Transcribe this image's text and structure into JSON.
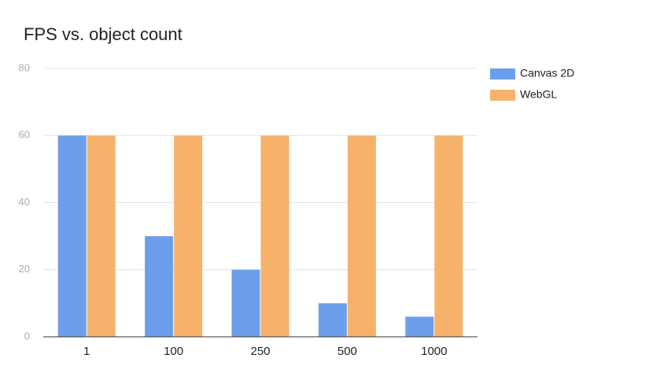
{
  "chart_data": {
    "type": "bar",
    "title": "FPS vs. object count",
    "categories": [
      "1",
      "100",
      "250",
      "500",
      "1000"
    ],
    "series": [
      {
        "name": "Canvas 2D",
        "color": "#6d9eeb",
        "values": [
          60,
          30,
          20,
          10,
          6
        ]
      },
      {
        "name": "WebGL",
        "color": "#f6b26b",
        "values": [
          60,
          60,
          60,
          60,
          60
        ]
      }
    ],
    "ylim": [
      0,
      80
    ],
    "yticks": [
      0,
      20,
      40,
      60,
      80
    ],
    "grid": true,
    "legend": "right"
  }
}
